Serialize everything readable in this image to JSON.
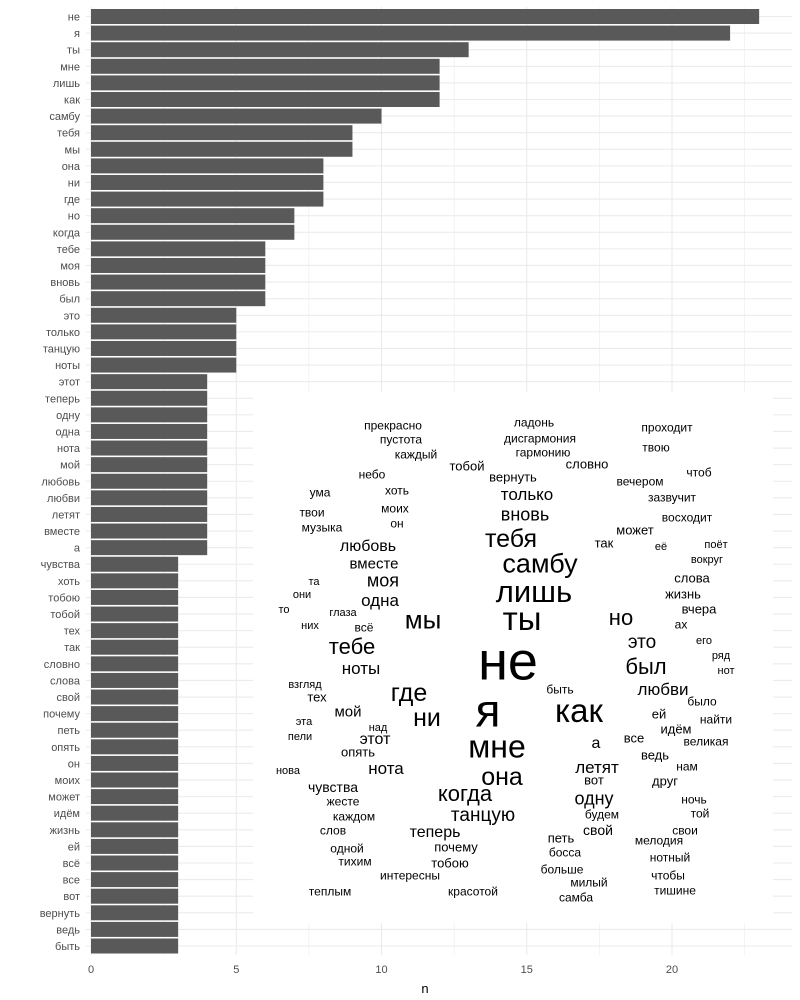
{
  "chart_data": {
    "type": "bar",
    "orientation": "horizontal",
    "title": "",
    "xlabel": "n",
    "ylabel": "",
    "xlim": [
      0,
      24
    ],
    "x_ticks": [
      0,
      5,
      10,
      15,
      20
    ],
    "grid": true,
    "bar_color": "#595959",
    "categories": [
      "не",
      "я",
      "ты",
      "мне",
      "лишь",
      "как",
      "самбу",
      "тебя",
      "мы",
      "она",
      "ни",
      "где",
      "но",
      "когда",
      "тебе",
      "моя",
      "вновь",
      "был",
      "это",
      "только",
      "танцую",
      "ноты",
      "этот",
      "теперь",
      "одну",
      "одна",
      "нота",
      "мой",
      "любовь",
      "любви",
      "летят",
      "вместе",
      "а",
      "чувства",
      "хоть",
      "тобою",
      "тобой",
      "тех",
      "так",
      "словно",
      "слова",
      "свой",
      "почему",
      "петь",
      "опять",
      "он",
      "моих",
      "может",
      "идём",
      "жизнь",
      "ей",
      "всё",
      "все",
      "вот",
      "вернуть",
      "ведь",
      "быть"
    ],
    "values": [
      23,
      22,
      13,
      12,
      12,
      12,
      10,
      9,
      9,
      8,
      8,
      8,
      7,
      7,
      6,
      6,
      6,
      6,
      5,
      5,
      5,
      5,
      4,
      4,
      4,
      4,
      4,
      4,
      4,
      4,
      4,
      4,
      4,
      3,
      3,
      3,
      3,
      3,
      3,
      3,
      3,
      3,
      3,
      3,
      3,
      3,
      3,
      3,
      3,
      3,
      3,
      3,
      3,
      3,
      3,
      3,
      3
    ],
    "wordcloud": {
      "type": "wordcloud",
      "color": "#000000",
      "words": [
        "прекрасно",
        "пустота",
        "каждый",
        "ладонь",
        "дисгармония",
        "гармонию",
        "проходит",
        "твою",
        "тобой",
        "словно",
        "вечером",
        "чтоб",
        "небо",
        "вернуть",
        "только",
        "хоть",
        "ума",
        "моих",
        "зазвучит",
        "твои",
        "вновь",
        "он",
        "музыка",
        "восходит",
        "может",
        "тебя",
        "любовь",
        "так",
        "её",
        "поёт",
        "вокруг",
        "самбу",
        "вместе",
        "слова",
        "моя",
        "та",
        "лишь",
        "они",
        "одна",
        "жизнь",
        "то",
        "глаза",
        "вчера",
        "мы",
        "ты",
        "но",
        "ах",
        "них",
        "всё",
        "не",
        "тебе",
        "это",
        "его",
        "ряд",
        "ноты",
        "был",
        "нот",
        "взгляд",
        "быть",
        "где",
        "любви",
        "тех",
        "я",
        "как",
        "было",
        "мой",
        "ни",
        "ей",
        "найти",
        "над",
        "эта",
        "идём",
        "пели",
        "этот",
        "а",
        "все",
        "великая",
        "ведь",
        "мне",
        "опять",
        "нота",
        "летят",
        "нам",
        "она",
        "нова",
        "друг",
        "чувства",
        "вот",
        "когда",
        "одну",
        "ночь",
        "жесте",
        "будем",
        "танцую",
        "той",
        "каждом",
        "свой",
        "свои",
        "слов",
        "теперь",
        "петь",
        "мелодия",
        "одной",
        "почему",
        "босса",
        "тихим",
        "нотный",
        "тобою",
        "больше",
        "интересны",
        "чтобы",
        "милый",
        "тишине",
        "теплым",
        "красотой",
        "самба"
      ]
    }
  }
}
